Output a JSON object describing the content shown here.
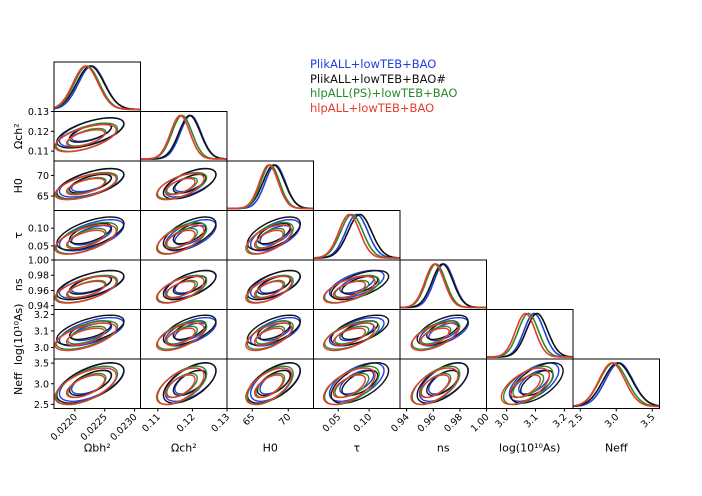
{
  "chart_data": {
    "type": "corner-plot",
    "title": "",
    "params": [
      {
        "key": "omegabh2",
        "label": "Ωbh²",
        "range": [
          0.02165,
          0.0231
        ],
        "ticks": [
          0.022,
          0.0225,
          0.023
        ],
        "tick_labels": [
          "0.0220",
          "0.0225",
          "0.0230"
        ]
      },
      {
        "key": "omegach2",
        "label": "Ωch²",
        "range": [
          0.105,
          0.13
        ],
        "ticks": [
          0.11,
          0.12,
          0.13
        ],
        "tick_labels": [
          "0.11",
          "0.12",
          "0.13"
        ]
      },
      {
        "key": "H0",
        "label": "H0",
        "range": [
          61.5,
          73.5
        ],
        "ticks": [
          65,
          70
        ],
        "tick_labels": [
          "65",
          "70"
        ]
      },
      {
        "key": "tau",
        "label": "τ",
        "range": [
          0.01,
          0.15
        ],
        "ticks": [
          0.05,
          0.1
        ],
        "tick_labels": [
          "0.05",
          "0.10"
        ]
      },
      {
        "key": "ns",
        "label": "ns",
        "range": [
          0.935,
          1.0
        ],
        "ticks": [
          0.94,
          0.96,
          0.98,
          1.0
        ],
        "tick_labels": [
          "0.94",
          "0.96",
          "0.98",
          "1.00"
        ]
      },
      {
        "key": "logA",
        "label": "log(10¹⁰As)",
        "range": [
          2.93,
          3.23
        ],
        "ticks": [
          3.0,
          3.1,
          3.2
        ],
        "tick_labels": [
          "3.0",
          "3.1",
          "3.2"
        ]
      },
      {
        "key": "Neff",
        "label": "Neff",
        "range": [
          2.4,
          3.6
        ],
        "ticks": [
          2.5,
          3.0,
          3.5
        ],
        "tick_labels": [
          "2.5",
          "3.0",
          "3.5"
        ]
      }
    ],
    "series": [
      {
        "name": "PlikALL+lowTEB+BAO",
        "color": "#1f3fe0",
        "mean": [
          0.02228,
          0.1195,
          68.2,
          0.08,
          0.968,
          3.095,
          3.04
        ],
        "sigma": [
          0.00022,
          0.003,
          1.4,
          0.018,
          0.0075,
          0.035,
          0.19
        ]
      },
      {
        "name": "PlikALL+lowTEB+BAO#",
        "color": "#111111",
        "mean": [
          0.02226,
          0.1192,
          68.0,
          0.085,
          0.967,
          3.105,
          3.02
        ],
        "sigma": [
          0.00023,
          0.0031,
          1.5,
          0.019,
          0.0078,
          0.037,
          0.2
        ]
      },
      {
        "name": "hlpALL(PS)+lowTEB+BAO",
        "color": "#2a8a2a",
        "mean": [
          0.0222,
          0.117,
          67.5,
          0.072,
          0.962,
          3.075,
          2.96
        ],
        "sigma": [
          0.00021,
          0.0029,
          1.3,
          0.018,
          0.0073,
          0.035,
          0.19
        ]
      },
      {
        "name": "hlpALL+lowTEB+BAO",
        "color": "#e83a2a",
        "mean": [
          0.02218,
          0.1165,
          67.3,
          0.068,
          0.961,
          3.065,
          2.94
        ],
        "sigma": [
          0.00021,
          0.0028,
          1.3,
          0.017,
          0.0072,
          0.034,
          0.18
        ]
      }
    ],
    "legend_position": "top-right"
  },
  "legend": {
    "items": [
      {
        "label": "PlikALL+lowTEB+BAO",
        "color": "#1f3fe0"
      },
      {
        "label": "PlikALL+lowTEB+BAO#",
        "color": "#111111"
      },
      {
        "label": "hlpALL(PS)+lowTEB+BAO",
        "color": "#2a8a2a"
      },
      {
        "label": "hlpALL+lowTEB+BAO",
        "color": "#e83a2a"
      }
    ]
  }
}
